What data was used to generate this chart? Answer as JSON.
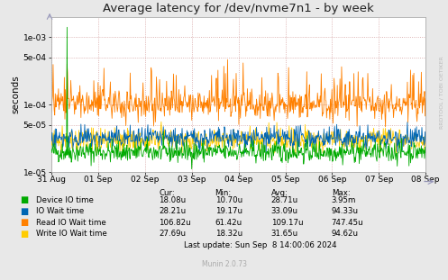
{
  "title": "Average latency for /dev/nvme7n1 - by week",
  "ylabel": "seconds",
  "x_labels": [
    "31 Aug",
    "01 Sep",
    "02 Sep",
    "03 Sep",
    "04 Sep",
    "05 Sep",
    "06 Sep",
    "07 Sep",
    "08 Sep"
  ],
  "bg_color": "#e8e8e8",
  "plot_bg_color": "#ffffff",
  "grid_color": "#d4a0a0",
  "legend": [
    {
      "label": "Device IO time",
      "color": "#00aa00"
    },
    {
      "label": "IO Wait time",
      "color": "#0066b3"
    },
    {
      "label": "Read IO Wait time",
      "color": "#ff8000"
    },
    {
      "label": "Write IO Wait time",
      "color": "#ffcc00"
    }
  ],
  "stats": {
    "headers": [
      "Cur:",
      "Min:",
      "Avg:",
      "Max:"
    ],
    "rows": [
      [
        "Device IO time",
        "18.08u",
        "10.70u",
        "28.71u",
        "3.95m"
      ],
      [
        "IO Wait time",
        "28.21u",
        "19.17u",
        "33.09u",
        "94.33u"
      ],
      [
        "Read IO Wait time",
        "106.82u",
        "61.42u",
        "109.17u",
        "747.45u"
      ],
      [
        "Write IO Wait time",
        "27.69u",
        "18.32u",
        "31.65u",
        "94.62u"
      ]
    ],
    "last_update": "Last update: Sun Sep  8 14:00:06 2024"
  },
  "munin_version": "Munin 2.0.73",
  "rrdtool_label": "RRDTOOL / TOBI OETIKER",
  "ylim_log_min": 1e-05,
  "ylim_log_max": 0.002,
  "n_points": 700,
  "yticks": [
    1e-05,
    5e-05,
    0.0001,
    0.0005,
    0.001
  ],
  "ytick_labels": [
    "1e-05",
    "5e-05",
    "1e-04",
    "5e-04",
    "1e-03"
  ]
}
